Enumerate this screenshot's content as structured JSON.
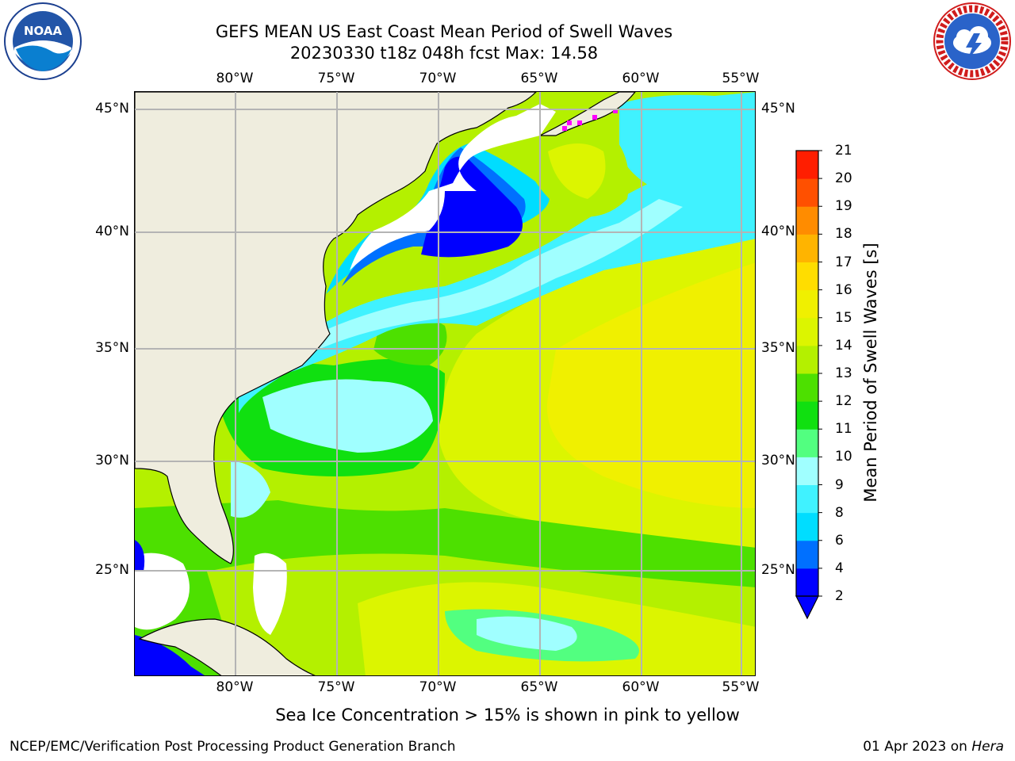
{
  "title_line1": "GEFS MEAN US East Coast Mean Period of Swell Waves",
  "title_line2": "20230330 t18z 048h fcst   Max: 14.58",
  "lon_labels": [
    "80°W",
    "75°W",
    "70°W",
    "65°W",
    "60°W",
    "55°W"
  ],
  "lat_labels": [
    "45°N",
    "40°N",
    "35°N",
    "30°N",
    "25°N"
  ],
  "map": {
    "lon_range": [
      -85,
      -54
    ],
    "lat_range": [
      20.5,
      46
    ],
    "gridlines_lon": [
      -80,
      -75,
      -70,
      -65,
      -60,
      -55
    ],
    "gridlines_lat": [
      45,
      40,
      35,
      30,
      25
    ]
  },
  "colorbar": {
    "title": "Mean Period of Swell Waves [s]",
    "levels": [
      "2",
      "4",
      "6",
      "8",
      "9",
      "10",
      "11",
      "12",
      "13",
      "14",
      "15",
      "16",
      "17",
      "18",
      "19",
      "20",
      "21"
    ],
    "colors": [
      "#0000ff",
      "#0070ff",
      "#00ddff",
      "#40f2ff",
      "#a0ffff",
      "#52ff80",
      "#10e010",
      "#4de000",
      "#b4f000",
      "#dcf500",
      "#f0f000",
      "#ffdd00",
      "#ffb400",
      "#ff8c00",
      "#ff5000",
      "#ff1e00"
    ],
    "extend": "min"
  },
  "colors": {
    "land": "#efedde",
    "no_data": "#ffffff",
    "sea_ice": "#ff00ff"
  },
  "footnote": "Sea Ice Concentration > 15% is shown in pink to yellow",
  "credit_left": "NCEP/EMC/Verification Post Processing Product Generation Branch",
  "credit_date": "01 Apr 2023 on ",
  "credit_machine": "Hera",
  "logos": {
    "left": "noaa-logo",
    "right": "nws-logo"
  }
}
